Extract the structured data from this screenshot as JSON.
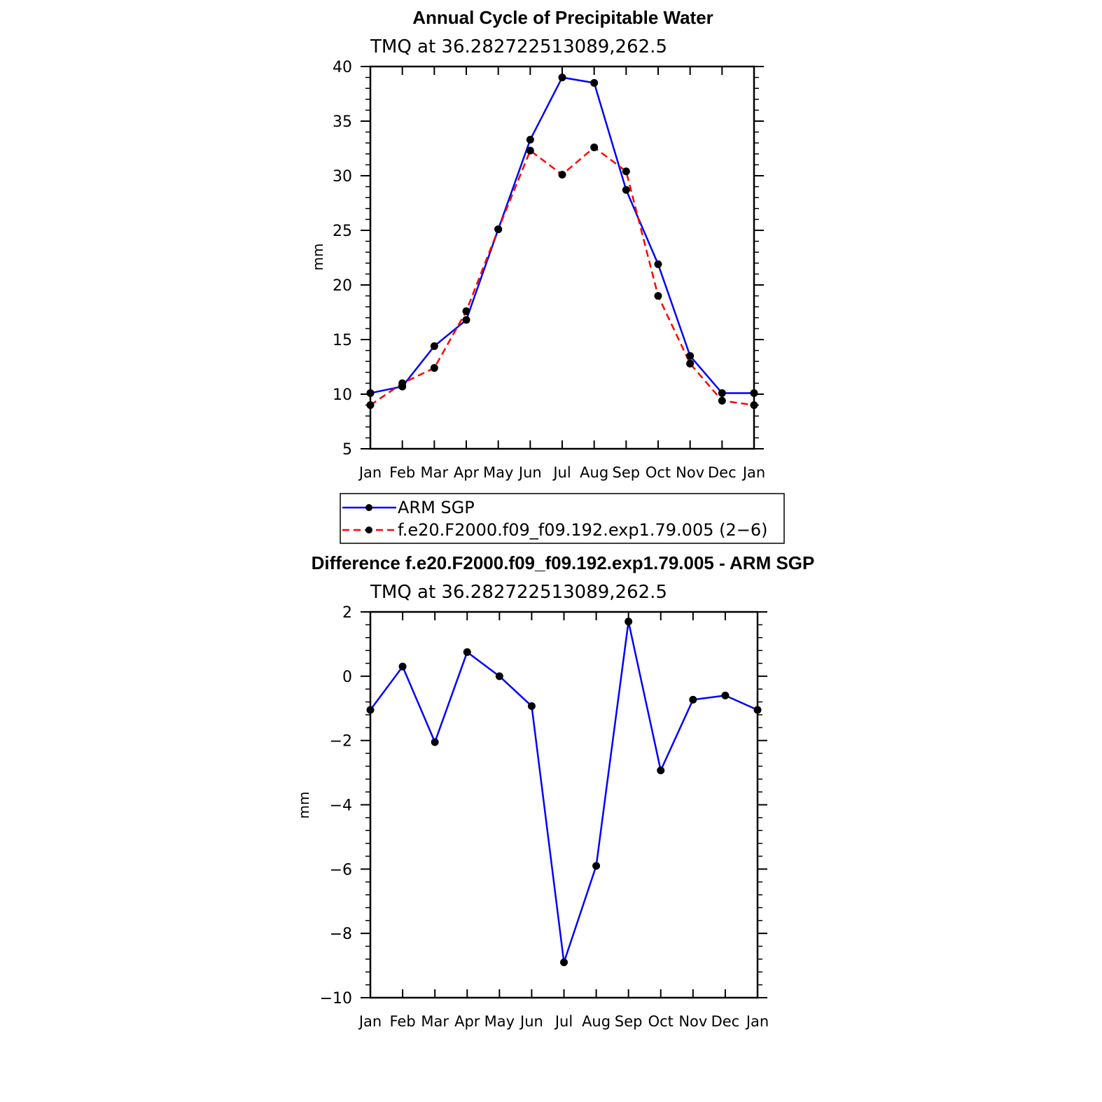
{
  "chart_data": [
    {
      "type": "line",
      "title": "Annual Cycle of Precipitable Water",
      "subtitle": "TMQ at 36.282722513089,262.5",
      "xlabel": "",
      "ylabel": "mm",
      "categories": [
        "Jan",
        "Feb",
        "Mar",
        "Apr",
        "May",
        "Jun",
        "Jul",
        "Aug",
        "Sep",
        "Oct",
        "Nov",
        "Dec",
        "Jan"
      ],
      "ylim": [
        5,
        40
      ],
      "yticks": [
        5,
        10,
        15,
        20,
        25,
        30,
        35,
        40
      ],
      "series": [
        {
          "name": "ARM SGP",
          "color": "#0000ff",
          "dash": "solid",
          "values": [
            10.1,
            10.7,
            14.4,
            16.8,
            25.1,
            33.3,
            39.0,
            38.5,
            28.7,
            21.9,
            13.5,
            10.1,
            10.1
          ]
        },
        {
          "name": "f.e20.F2000.f09_f09.192.exp1.79.005 (2−6)",
          "color": "#ff0000",
          "dash": "dashed",
          "values": [
            9.0,
            11.0,
            12.4,
            17.6,
            25.1,
            32.3,
            30.1,
            32.6,
            30.4,
            19.0,
            12.8,
            9.4,
            9.0
          ]
        }
      ],
      "legend": "below"
    },
    {
      "type": "line",
      "title": "Difference f.e20.F2000.f09_f09.192.exp1.79.005 - ARM SGP",
      "subtitle": "TMQ at 36.282722513089,262.5",
      "xlabel": "",
      "ylabel": "mm",
      "categories": [
        "Jan",
        "Feb",
        "Mar",
        "Apr",
        "May",
        "Jun",
        "Jul",
        "Aug",
        "Sep",
        "Oct",
        "Nov",
        "Dec",
        "Jan"
      ],
      "ylim": [
        -10,
        2
      ],
      "yticks": [
        -10,
        -8,
        -6,
        -4,
        -2,
        0,
        2
      ],
      "ytick_labels": [
        "−10",
        "−8",
        "−6",
        "−4",
        "−2",
        "0",
        "2"
      ],
      "series": [
        {
          "name": "Difference",
          "color": "#0000ff",
          "dash": "solid",
          "values": [
            -1.05,
            0.3,
            -2.05,
            0.75,
            0.0,
            -0.93,
            -8.9,
            -5.9,
            1.7,
            -2.93,
            -0.73,
            -0.6,
            -1.05
          ]
        }
      ]
    }
  ]
}
